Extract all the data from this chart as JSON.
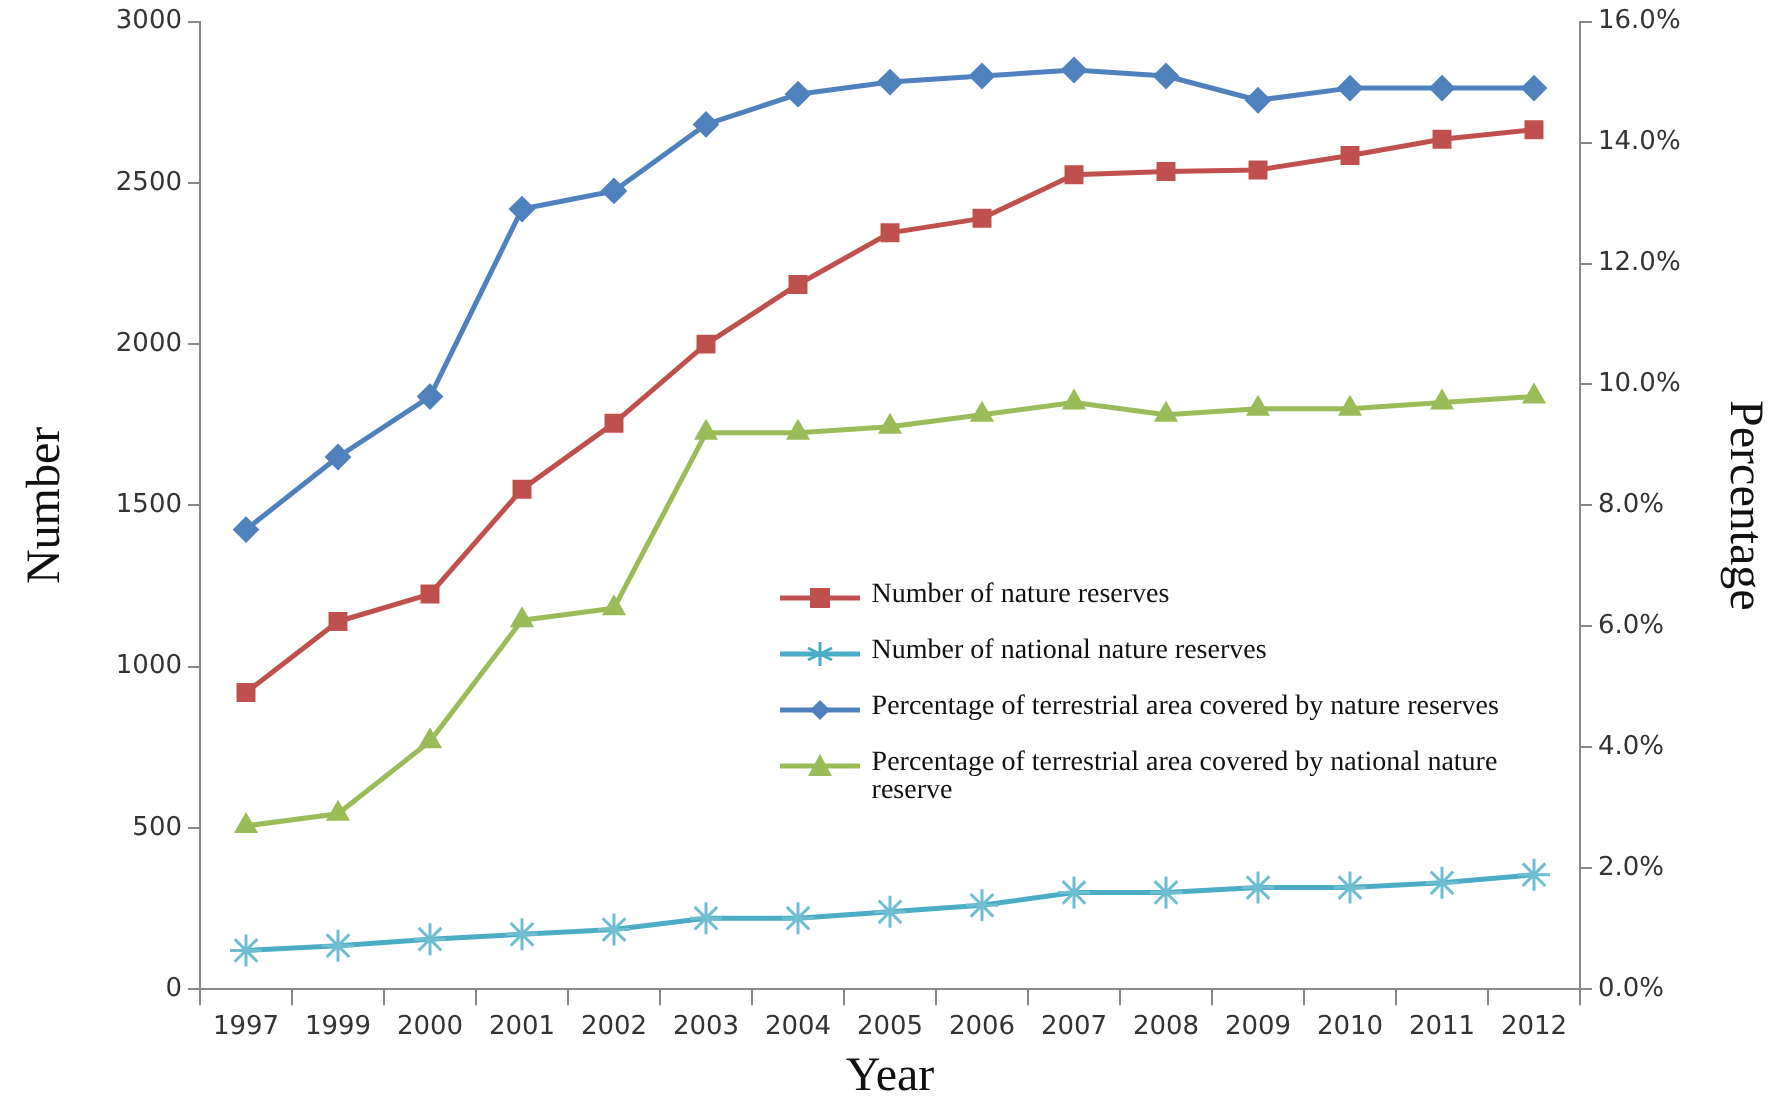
{
  "chart_data": {
    "type": "line",
    "xlabel": "Year",
    "ylabel": "Number",
    "y2label": "Percentage",
    "categories": [
      "1997",
      "1999",
      "2000",
      "2001",
      "2002",
      "2003",
      "2004",
      "2005",
      "2006",
      "2007",
      "2008",
      "2009",
      "2010",
      "2011",
      "2012"
    ],
    "ylim": [
      0,
      3000
    ],
    "yticks": [
      0,
      500,
      1000,
      1500,
      2000,
      2500,
      3000
    ],
    "y2lim": [
      0,
      16
    ],
    "y2ticks": [
      {
        "value": 0,
        "label": "0.0%"
      },
      {
        "value": 2,
        "label": "2.0%"
      },
      {
        "value": 4,
        "label": "4.0%"
      },
      {
        "value": 6,
        "label": "6.0%"
      },
      {
        "value": 8,
        "label": "8.0%"
      },
      {
        "value": 10,
        "label": "10.0%"
      },
      {
        "value": 12,
        "label": "12.0%"
      },
      {
        "value": 14,
        "label": "14.0%"
      },
      {
        "value": 16,
        "label": "16.0%"
      }
    ],
    "grid": false,
    "legend": "center",
    "line_style": "solid",
    "series": [
      {
        "name": "Number of nature reserves",
        "color": "#c0504d",
        "marker": "square",
        "values": [
          920,
          1140,
          1225,
          1550,
          1755,
          2000,
          2185,
          2345,
          2390,
          2525,
          2535,
          2540,
          2585,
          2635,
          2665
        ]
      },
      {
        "name": "Number of national nature reserves",
        "color": "#4bacc6",
        "marker": "cross",
        "values": [
          120,
          135,
          155,
          170,
          185,
          220,
          220,
          240,
          260,
          300,
          300,
          315,
          315,
          330,
          355
        ]
      },
      {
        "name": "Percentage of terrestrial area covered by nature reserves",
        "color": "#4f81bd",
        "marker": "diamond",
        "axis": "y2",
        "values": [
          7.6,
          8.8,
          9.8,
          12.9,
          13.2,
          14.3,
          14.8,
          15.0,
          15.1,
          15.2,
          15.1,
          14.7,
          14.9,
          14.9,
          14.9
        ]
      },
      {
        "name": "Percentage of terrestrial area covered by national nature reserve",
        "color": "#9bbb59",
        "marker": "triangle",
        "axis": "y2",
        "values": [
          2.7,
          2.9,
          4.1,
          6.1,
          6.3,
          9.2,
          9.2,
          9.3,
          9.5,
          9.7,
          9.5,
          9.6,
          9.6,
          9.7,
          9.8
        ]
      }
    ]
  }
}
